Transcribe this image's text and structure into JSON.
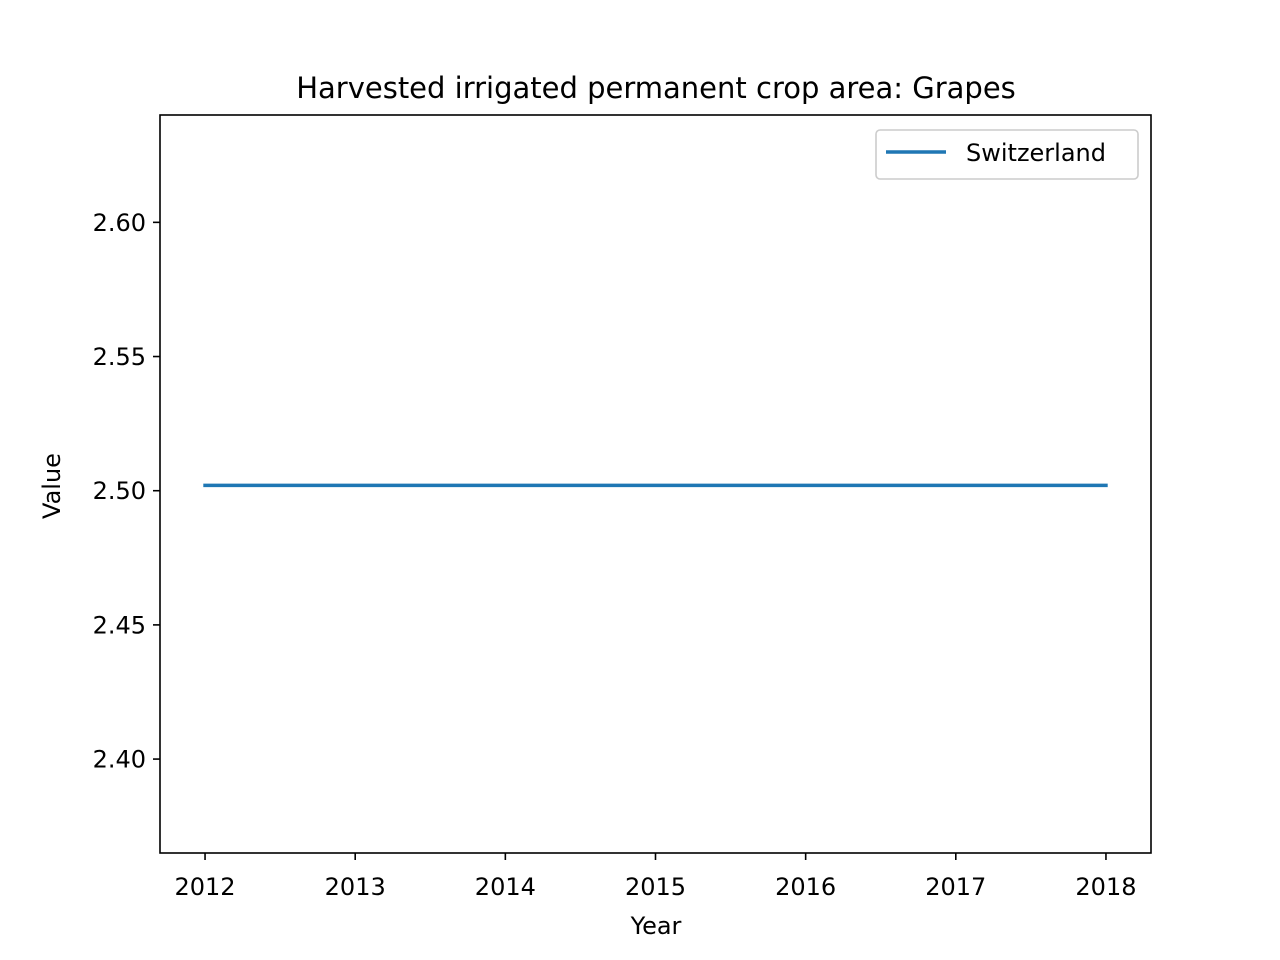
{
  "chart_data": {
    "type": "line",
    "title": "Harvested irrigated permanent crop area: Grapes",
    "xlabel": "Year",
    "ylabel": "Value",
    "x": [
      2012,
      2013,
      2014,
      2015,
      2016,
      2017,
      2018
    ],
    "series": [
      {
        "name": "Switzerland",
        "color": "#1f77b4",
        "values": [
          2.502,
          2.502,
          2.502,
          2.502,
          2.502,
          2.502,
          2.502
        ]
      }
    ],
    "xlim": [
      2011.7,
      2018.3
    ],
    "ylim": [
      2.365,
      2.64
    ],
    "xticks": [
      "2012",
      "2013",
      "2014",
      "2015",
      "2016",
      "2017",
      "2018"
    ],
    "yticks": [
      "2.40",
      "2.45",
      "2.50",
      "2.55",
      "2.60"
    ],
    "grid": false,
    "legend_position": "top-right"
  }
}
